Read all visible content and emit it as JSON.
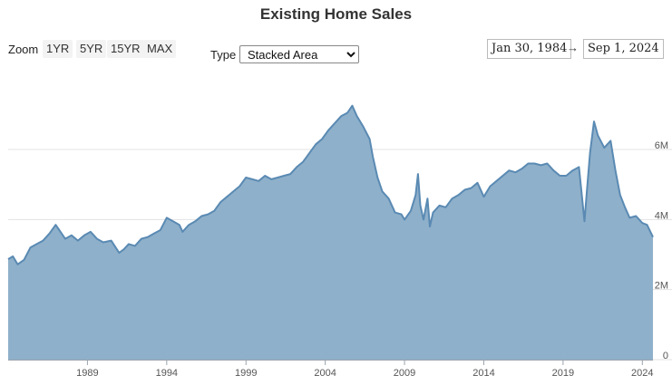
{
  "title": "Existing Home Sales",
  "controls": {
    "zoom_label": "Zoom",
    "zoom_buttons": [
      "1YR",
      "5YR",
      "15YR",
      "MAX"
    ],
    "type_label": "Type",
    "type_selected": "Stacked Area",
    "date_from": "Jan 30, 1984",
    "date_arrow": "→",
    "date_to": "Sep 1, 2024"
  },
  "chart_data": {
    "type": "area",
    "title": "Existing Home Sales",
    "series_color": "#5a8ab3",
    "fill_color": "#8fb0ca",
    "xlabel": "",
    "ylabel": "",
    "xlim": [
      1984.0,
      2024.67
    ],
    "ylim": [
      0,
      8200000
    ],
    "x_ticks": [
      1989,
      1994,
      1999,
      2004,
      2009,
      2014,
      2019,
      2024
    ],
    "y_ticks": [
      {
        "value": 0,
        "label": "0"
      },
      {
        "value": 2000000,
        "label": "2M"
      },
      {
        "value": 4000000,
        "label": "4M"
      },
      {
        "value": 6000000,
        "label": "6M"
      }
    ],
    "grid": true,
    "x": [
      1984.0,
      1984.3,
      1984.6,
      1985.0,
      1985.4,
      1985.8,
      1986.2,
      1986.6,
      1987.0,
      1987.3,
      1987.6,
      1988.0,
      1988.4,
      1988.8,
      1989.2,
      1989.6,
      1990.0,
      1990.5,
      1991.0,
      1991.3,
      1991.6,
      1992.0,
      1992.4,
      1992.8,
      1993.2,
      1993.6,
      1994.0,
      1994.4,
      1994.8,
      1995.0,
      1995.4,
      1995.8,
      1996.2,
      1996.6,
      1997.0,
      1997.4,
      1997.8,
      1998.2,
      1998.6,
      1999.0,
      1999.4,
      1999.8,
      2000.2,
      2000.6,
      2001.0,
      2001.4,
      2001.8,
      2002.2,
      2002.6,
      2003.0,
      2003.4,
      2003.8,
      2004.2,
      2004.6,
      2005.0,
      2005.4,
      2005.7,
      2006.0,
      2006.4,
      2006.8,
      2007.0,
      2007.3,
      2007.6,
      2008.0,
      2008.4,
      2008.8,
      2009.0,
      2009.4,
      2009.7,
      2009.85,
      2010.0,
      2010.2,
      2010.45,
      2010.6,
      2010.8,
      2011.2,
      2011.6,
      2012.0,
      2012.4,
      2012.8,
      2013.2,
      2013.6,
      2014.0,
      2014.4,
      2014.8,
      2015.2,
      2015.6,
      2016.0,
      2016.4,
      2016.8,
      2017.2,
      2017.6,
      2018.0,
      2018.4,
      2018.8,
      2019.2,
      2019.6,
      2020.0,
      2020.35,
      2020.5,
      2020.7,
      2020.95,
      2021.2,
      2021.6,
      2022.0,
      2022.3,
      2022.6,
      2022.9,
      2023.2,
      2023.6,
      2024.0,
      2024.3,
      2024.67
    ],
    "values": [
      2870000,
      2950000,
      2720000,
      2850000,
      3200000,
      3300000,
      3400000,
      3600000,
      3850000,
      3650000,
      3450000,
      3550000,
      3400000,
      3550000,
      3650000,
      3450000,
      3350000,
      3400000,
      3050000,
      3150000,
      3300000,
      3250000,
      3450000,
      3500000,
      3600000,
      3700000,
      4050000,
      3950000,
      3850000,
      3650000,
      3850000,
      3950000,
      4100000,
      4150000,
      4250000,
      4500000,
      4650000,
      4800000,
      4950000,
      5200000,
      5150000,
      5100000,
      5250000,
      5150000,
      5200000,
      5250000,
      5300000,
      5500000,
      5650000,
      5900000,
      6150000,
      6300000,
      6550000,
      6750000,
      6950000,
      7050000,
      7250000,
      6950000,
      6650000,
      6300000,
      5800000,
      5200000,
      4800000,
      4600000,
      4200000,
      4150000,
      4000000,
      4250000,
      4700000,
      5300000,
      4400000,
      4000000,
      4600000,
      3800000,
      4200000,
      4400000,
      4350000,
      4600000,
      4700000,
      4850000,
      4900000,
      5050000,
      4650000,
      4950000,
      5100000,
      5250000,
      5400000,
      5350000,
      5450000,
      5600000,
      5600000,
      5550000,
      5600000,
      5400000,
      5250000,
      5250000,
      5400000,
      5500000,
      3950000,
      4800000,
      5900000,
      6800000,
      6400000,
      6050000,
      6250000,
      5400000,
      4700000,
      4350000,
      4050000,
      4100000,
      3900000,
      3850000,
      3500000
    ]
  }
}
